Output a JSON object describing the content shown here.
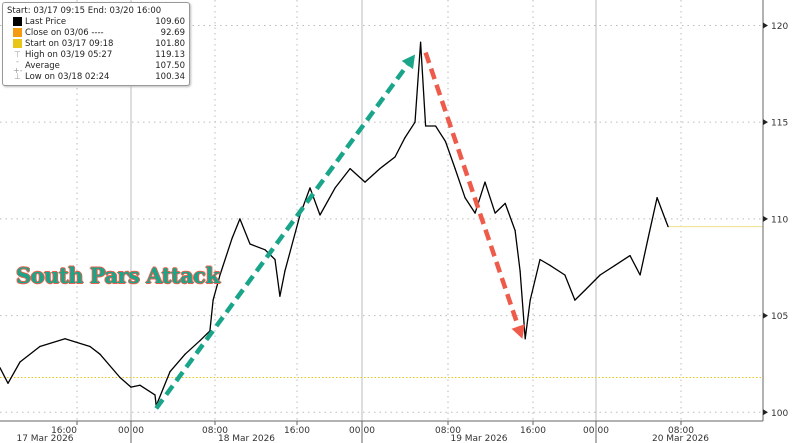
{
  "chart_data": {
    "type": "line",
    "title": "",
    "annotation": "South Pars Attack",
    "range_label": "Start: 03/17 09:15 End: 03/20 16:00",
    "legend": [
      {
        "label": "Last Price",
        "value": "109.60",
        "color": "#000000",
        "icon": "square"
      },
      {
        "label": "Close on 03/06 ----",
        "value": "92.69",
        "color": "#f39c12",
        "icon": "square"
      },
      {
        "label": "Start on 03/17 09:18",
        "value": "101.80",
        "color": "#e8c619",
        "icon": "square"
      },
      {
        "label": "High on 03/19 05:27",
        "value": "119.13",
        "icon": "high-marker"
      },
      {
        "label": "Average",
        "value": "107.50",
        "icon": "average-marker"
      },
      {
        "label": "Low on 03/18 02:24",
        "value": "100.34",
        "icon": "low-marker"
      }
    ],
    "yaxis": {
      "ticks": [
        100,
        105,
        110,
        115,
        120
      ],
      "range": [
        99.6,
        120.8
      ],
      "position": "right"
    },
    "xaxis": {
      "time_ticks": [
        "16:00",
        "00:00",
        "08:00",
        "16:00",
        "00:00",
        "08:00",
        "16:00",
        "00:00",
        "08:00"
      ],
      "date_labels": [
        "17 Mar 2026",
        "18 Mar 2026",
        "19 Mar 2026",
        "20 Mar 2026"
      ]
    },
    "grid": true,
    "reference_lines": [
      {
        "label": "Start",
        "value": 101.8,
        "color": "#e8c619",
        "style": "dotted"
      }
    ],
    "last_price_line": {
      "value": 109.6,
      "color": "#f0e08a"
    },
    "series": [
      {
        "color": "#000000",
        "points": [
          [
            "03/17 09:15",
            102.3
          ],
          [
            "03/17 09:57",
            101.5
          ],
          [
            "03/17 11:00",
            102.6
          ],
          [
            "03/17 12:45",
            103.4
          ],
          [
            "03/17 14:57",
            103.8
          ],
          [
            "03/17 17:56",
            103.4
          ],
          [
            "03/17 19:24",
            103.0
          ],
          [
            "03/17 22:22",
            101.8
          ],
          [
            "03/18 00:00",
            101.3
          ],
          [
            "03/18 00:51",
            101.4
          ],
          [
            "03/18 02:17",
            100.9
          ],
          [
            "03/18 02:24",
            100.34
          ],
          [
            "03/18 03:43",
            102.1
          ],
          [
            "03/18 05:09",
            103.0
          ],
          [
            "03/18 06:34",
            103.7
          ],
          [
            "03/18 07:31",
            104.2
          ],
          [
            "03/18 07:49",
            105.8
          ],
          [
            "03/18 08:29",
            107.1
          ],
          [
            "03/18 09:40",
            109.0
          ],
          [
            "03/18 10:26",
            110.0
          ],
          [
            "03/18 11:25",
            108.7
          ],
          [
            "03/18 12:53",
            108.4
          ],
          [
            "03/18 13:51",
            107.9
          ],
          [
            "03/18 14:20",
            106.0
          ],
          [
            "03/18 14:49",
            107.3
          ],
          [
            "03/18 16:22",
            110.2
          ],
          [
            "03/18 17:36",
            111.6
          ],
          [
            "03/18 18:50",
            110.2
          ],
          [
            "03/18 20:41",
            111.6
          ],
          [
            "03/18 22:32",
            112.6
          ],
          [
            "03/19 00:17",
            111.9
          ],
          [
            "03/19 01:40",
            112.6
          ],
          [
            "03/19 03:04",
            113.2
          ],
          [
            "03/19 04:00",
            114.2
          ],
          [
            "03/19 04:56",
            115.0
          ],
          [
            "03/19 05:27",
            119.13
          ],
          [
            "03/19 05:55",
            114.8
          ],
          [
            "03/19 06:51",
            114.8
          ],
          [
            "03/19 07:46",
            114.0
          ],
          [
            "03/19 08:40",
            112.6
          ],
          [
            "03/19 09:36",
            111.1
          ],
          [
            "03/19 10:33",
            110.3
          ],
          [
            "03/19 11:29",
            111.9
          ],
          [
            "03/19 12:26",
            110.3
          ],
          [
            "03/19 13:23",
            110.8
          ],
          [
            "03/19 14:19",
            109.4
          ],
          [
            "03/19 14:47",
            107.3
          ],
          [
            "03/19 15:16",
            103.8
          ],
          [
            "03/19 15:44",
            105.8
          ],
          [
            "03/19 16:53",
            107.9
          ],
          [
            "03/19 18:09",
            107.6
          ],
          [
            "03/19 20:03",
            107.1
          ],
          [
            "03/19 21:19",
            105.8
          ],
          [
            "03/19 22:35",
            106.3
          ],
          [
            "03/20 00:23",
            107.1
          ],
          [
            "03/20 01:48",
            107.6
          ],
          [
            "03/20 03:12",
            108.1
          ],
          [
            "03/20 04:09",
            107.1
          ],
          [
            "03/20 04:54",
            109.0
          ],
          [
            "03/20 05:45",
            111.1
          ],
          [
            "03/20 06:30",
            110.0
          ],
          [
            "03/20 06:47",
            109.6
          ]
        ]
      }
    ],
    "arrows": [
      {
        "from": [
          "03/18 02:24",
          100.2
        ],
        "to": [
          "03/19 04:56",
          118.5
        ],
        "color": "#1aa58a",
        "style": "dashed"
      },
      {
        "from": [
          "03/19 05:55",
          118.6
        ],
        "to": [
          "03/19 15:00",
          103.8
        ],
        "color": "#ee5b4a",
        "style": "dashed"
      }
    ]
  }
}
